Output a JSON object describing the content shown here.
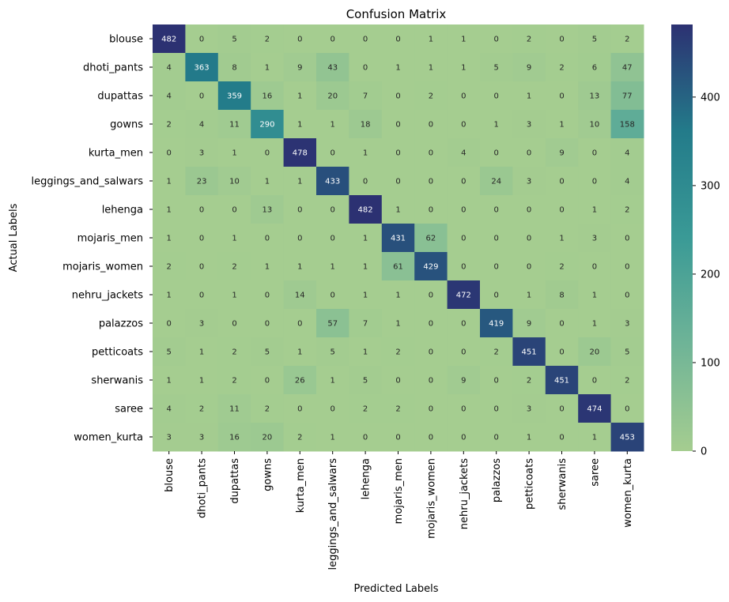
{
  "chart_data": {
    "type": "heatmap",
    "title": "Confusion Matrix",
    "xlabel": "Predicted Labels",
    "ylabel": "Actual Labels",
    "x_categories": [
      "blouse",
      "dhoti_pants",
      "dupattas",
      "gowns",
      "kurta_men",
      "leggings_and_salwars",
      "lehenga",
      "mojaris_men",
      "mojaris_women",
      "nehru_jackets",
      "palazzos",
      "petticoats",
      "sherwanis",
      "saree",
      "women_kurta"
    ],
    "y_categories": [
      "blouse",
      "dhoti_pants",
      "dupattas",
      "gowns",
      "kurta_men",
      "leggings_and_salwars",
      "lehenga",
      "mojaris_men",
      "mojaris_women",
      "nehru_jackets",
      "palazzos",
      "petticoats",
      "sherwanis",
      "saree",
      "women_kurta"
    ],
    "values": [
      [
        482,
        0,
        5,
        2,
        0,
        0,
        0,
        0,
        1,
        1,
        0,
        2,
        0,
        5,
        2
      ],
      [
        4,
        363,
        8,
        1,
        9,
        43,
        0,
        1,
        1,
        1,
        5,
        9,
        2,
        6,
        47
      ],
      [
        4,
        0,
        359,
        16,
        1,
        20,
        7,
        0,
        2,
        0,
        0,
        1,
        0,
        13,
        77
      ],
      [
        2,
        4,
        11,
        290,
        1,
        1,
        18,
        0,
        0,
        0,
        1,
        3,
        1,
        10,
        158
      ],
      [
        0,
        3,
        1,
        0,
        478,
        0,
        1,
        0,
        0,
        4,
        0,
        0,
        9,
        0,
        4
      ],
      [
        1,
        23,
        10,
        1,
        1,
        433,
        0,
        0,
        0,
        0,
        24,
        3,
        0,
        0,
        4
      ],
      [
        1,
        0,
        0,
        13,
        0,
        0,
        482,
        1,
        0,
        0,
        0,
        0,
        0,
        1,
        2
      ],
      [
        1,
        0,
        1,
        0,
        0,
        0,
        1,
        431,
        62,
        0,
        0,
        0,
        1,
        3,
        0
      ],
      [
        2,
        0,
        2,
        1,
        1,
        1,
        1,
        61,
        429,
        0,
        0,
        0,
        2,
        0,
        0
      ],
      [
        1,
        0,
        1,
        0,
        14,
        0,
        1,
        1,
        0,
        472,
        0,
        1,
        8,
        1,
        0
      ],
      [
        0,
        3,
        0,
        0,
        0,
        57,
        7,
        1,
        0,
        0,
        419,
        9,
        0,
        1,
        3
      ],
      [
        5,
        1,
        2,
        5,
        1,
        5,
        1,
        2,
        0,
        0,
        2,
        451,
        0,
        20,
        5
      ],
      [
        1,
        1,
        2,
        0,
        26,
        1,
        5,
        0,
        0,
        9,
        0,
        2,
        451,
        0,
        2
      ],
      [
        4,
        2,
        11,
        2,
        0,
        0,
        2,
        2,
        0,
        0,
        0,
        3,
        0,
        474,
        0
      ],
      [
        3,
        3,
        16,
        20,
        2,
        1,
        0,
        0,
        0,
        0,
        0,
        1,
        0,
        1,
        453
      ]
    ],
    "colormap": "crest",
    "colorbar_range": [
      0,
      482
    ],
    "colorbar_ticks": [
      0,
      100,
      200,
      300,
      400
    ],
    "grid": false,
    "legend": "colorbar-right"
  }
}
